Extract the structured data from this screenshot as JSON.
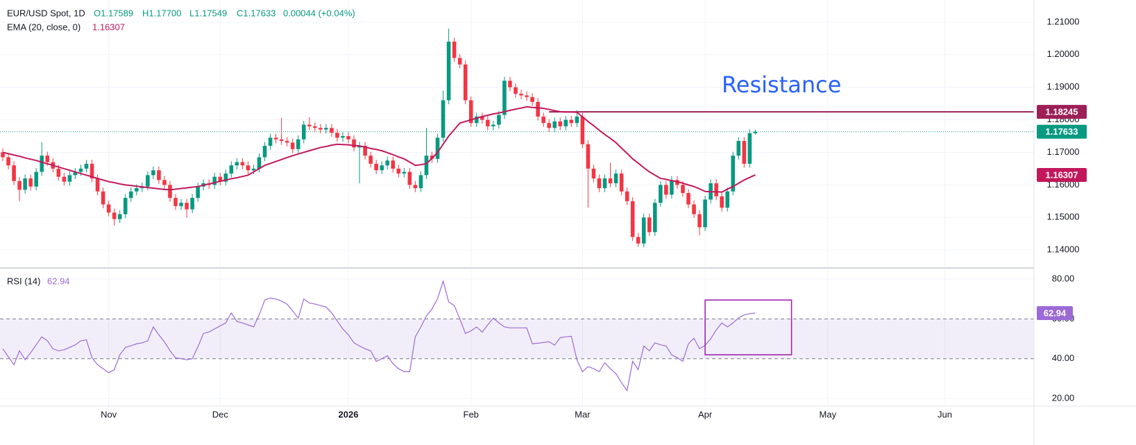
{
  "chart_data": [
    {
      "type": "candlestick",
      "title": "EUR/USD Spot, 1D",
      "legend_values": [
        "O1.17589",
        "H1.17700",
        "L1.17549",
        "C1.17633",
        "0.00044 (+0.04%)"
      ],
      "xlim": [
        -0.5,
        185
      ],
      "xticks": [
        {
          "value": 19,
          "label": "Nov"
        },
        {
          "value": 39,
          "label": "Dec"
        },
        {
          "value": 62,
          "label": "2026"
        },
        {
          "value": 84,
          "label": "Feb"
        },
        {
          "value": 104,
          "label": "Mar"
        },
        {
          "value": 126,
          "label": "Apr"
        },
        {
          "value": 148,
          "label": "May"
        },
        {
          "value": 169,
          "label": "Jun"
        }
      ],
      "ylim": [
        1.1347,
        1.2168
      ],
      "yticks": [
        {
          "value": 1.14,
          "label": "1.14000"
        },
        {
          "value": 1.15,
          "label": "1.15000"
        },
        {
          "value": 1.16,
          "label": "1.16000"
        },
        {
          "value": 1.17,
          "label": "1.17000"
        },
        {
          "value": 1.18,
          "label": "1.18000"
        },
        {
          "value": 1.19,
          "label": "1.19000"
        },
        {
          "value": 1.2,
          "label": "1.20000"
        },
        {
          "value": 1.21,
          "label": "1.21000"
        }
      ],
      "grid": true,
      "up_color": "#089981",
      "down_color": "#f23645",
      "open": [
        1.17,
        1.1685,
        1.166,
        1.1612,
        1.1585,
        1.162,
        1.1595,
        1.164,
        1.169,
        1.167,
        1.165,
        1.1625,
        1.161,
        1.163,
        1.164,
        1.165,
        1.1665,
        1.162,
        1.158,
        1.154,
        1.1515,
        1.1495,
        1.151,
        1.156,
        1.158,
        1.159,
        1.1595,
        1.163,
        1.1645,
        1.1615,
        1.16,
        1.156,
        1.1535,
        1.1545,
        1.1525,
        1.156,
        1.1595,
        1.1605,
        1.16,
        1.1625,
        1.161,
        1.1635,
        1.166,
        1.167,
        1.166,
        1.1645,
        1.165,
        1.1685,
        1.172,
        1.1745,
        1.174,
        1.1735,
        1.173,
        1.171,
        1.174,
        1.1785,
        1.178,
        1.1775,
        1.177,
        1.1775,
        1.176,
        1.1745,
        1.175,
        1.174,
        1.1715,
        1.172,
        1.169,
        1.1665,
        1.1645,
        1.166,
        1.1675,
        1.165,
        1.1635,
        1.164,
        1.16,
        1.159,
        1.163,
        1.169,
        1.168,
        1.1745,
        1.186,
        1.204,
        1.199,
        1.197,
        1.186,
        1.179,
        1.181,
        1.18,
        1.178,
        1.1785,
        1.1815,
        1.192,
        1.19,
        1.188,
        1.1875,
        1.187,
        1.1855,
        1.181,
        1.179,
        1.1775,
        1.1795,
        1.178,
        1.18,
        1.179,
        1.181,
        1.1725,
        1.165,
        1.162,
        1.159,
        1.162,
        1.1605,
        1.1635,
        1.158,
        1.155,
        1.144,
        1.142,
        1.15,
        1.1455,
        1.1545,
        1.16,
        1.157,
        1.1615,
        1.16,
        1.1575,
        1.154,
        1.151,
        1.147,
        1.1555,
        1.1605,
        1.1565,
        1.153,
        1.158,
        1.169,
        1.1735,
        1.1665,
        1.17589
      ],
      "high": [
        1.1712,
        1.1697,
        1.1672,
        1.1624,
        1.1632,
        1.1632,
        1.1652,
        1.1732,
        1.1702,
        1.1682,
        1.1662,
        1.1637,
        1.1642,
        1.1652,
        1.1662,
        1.1677,
        1.1677,
        1.1632,
        1.1592,
        1.1552,
        1.1527,
        1.1522,
        1.1572,
        1.1592,
        1.1602,
        1.1607,
        1.1642,
        1.1657,
        1.1657,
        1.1627,
        1.1612,
        1.1572,
        1.1557,
        1.1557,
        1.1572,
        1.1607,
        1.1617,
        1.1617,
        1.1637,
        1.1637,
        1.1647,
        1.1672,
        1.1682,
        1.1682,
        1.1672,
        1.1662,
        1.1697,
        1.1732,
        1.1757,
        1.1757,
        1.1806,
        1.1747,
        1.1742,
        1.1752,
        1.1797,
        1.1808,
        1.1792,
        1.1787,
        1.1787,
        1.1787,
        1.1772,
        1.1762,
        1.1762,
        1.1752,
        1.1732,
        1.1732,
        1.1702,
        1.1677,
        1.1672,
        1.1687,
        1.1687,
        1.1662,
        1.1652,
        1.1652,
        1.1612,
        1.1642,
        1.1775,
        1.1702,
        1.1757,
        1.189,
        1.208,
        1.2052,
        1.2002,
        1.1982,
        1.1872,
        1.1822,
        1.1822,
        1.1812,
        1.1797,
        1.1827,
        1.1932,
        1.1932,
        1.1912,
        1.1892,
        1.1887,
        1.1882,
        1.1867,
        1.1822,
        1.1802,
        1.1807,
        1.1807,
        1.1812,
        1.1812,
        1.183,
        1.1822,
        1.1737,
        1.1662,
        1.1632,
        1.1632,
        1.1668,
        1.1647,
        1.1647,
        1.1592,
        1.1562,
        1.1452,
        1.1512,
        1.1512,
        1.1557,
        1.1612,
        1.1612,
        1.1627,
        1.1627,
        1.1612,
        1.1587,
        1.1552,
        1.1522,
        1.1567,
        1.1617,
        1.1617,
        1.1577,
        1.1592,
        1.1702,
        1.1747,
        1.1747,
        1.1771,
        1.177
      ],
      "low": [
        1.1673,
        1.1648,
        1.16,
        1.155,
        1.1573,
        1.1583,
        1.1583,
        1.1628,
        1.1658,
        1.1638,
        1.1613,
        1.1598,
        1.1598,
        1.1618,
        1.1628,
        1.1638,
        1.1608,
        1.1568,
        1.1528,
        1.1503,
        1.1475,
        1.1483,
        1.1498,
        1.1548,
        1.1568,
        1.1578,
        1.1583,
        1.1618,
        1.1603,
        1.1588,
        1.1548,
        1.1523,
        1.1523,
        1.15,
        1.1513,
        1.1548,
        1.1583,
        1.1588,
        1.1588,
        1.1598,
        1.1598,
        1.1623,
        1.1648,
        1.1648,
        1.1633,
        1.1633,
        1.1638,
        1.1673,
        1.1708,
        1.1728,
        1.1723,
        1.1718,
        1.1698,
        1.1698,
        1.1728,
        1.1768,
        1.1763,
        1.1758,
        1.1758,
        1.1748,
        1.1733,
        1.1733,
        1.1728,
        1.1703,
        1.1605,
        1.1678,
        1.1653,
        1.1633,
        1.1633,
        1.1648,
        1.1638,
        1.1623,
        1.1623,
        1.1588,
        1.1578,
        1.1578,
        1.1618,
        1.1668,
        1.1668,
        1.1733,
        1.1848,
        1.1978,
        1.1958,
        1.1848,
        1.1778,
        1.1778,
        1.1788,
        1.1768,
        1.1768,
        1.1773,
        1.1803,
        1.1888,
        1.1868,
        1.1863,
        1.1858,
        1.1843,
        1.1798,
        1.1778,
        1.1763,
        1.1763,
        1.1768,
        1.1768,
        1.1778,
        1.1778,
        1.1713,
        1.153,
        1.1608,
        1.1578,
        1.1578,
        1.1593,
        1.1593,
        1.1568,
        1.1538,
        1.1428,
        1.141,
        1.1408,
        1.1443,
        1.1443,
        1.1533,
        1.1558,
        1.1558,
        1.1588,
        1.1563,
        1.1528,
        1.1498,
        1.1445,
        1.1458,
        1.1543,
        1.1553,
        1.1518,
        1.1518,
        1.1568,
        1.1678,
        1.1653,
        1.1653,
        1.17549
      ],
      "close": [
        1.1685,
        1.166,
        1.1612,
        1.1585,
        1.162,
        1.1595,
        1.164,
        1.169,
        1.167,
        1.165,
        1.1625,
        1.161,
        1.163,
        1.164,
        1.165,
        1.1665,
        1.162,
        1.158,
        1.154,
        1.1515,
        1.1495,
        1.151,
        1.156,
        1.158,
        1.159,
        1.1595,
        1.163,
        1.1645,
        1.1615,
        1.16,
        1.156,
        1.1535,
        1.1545,
        1.1525,
        1.156,
        1.1595,
        1.1605,
        1.16,
        1.1625,
        1.161,
        1.1635,
        1.166,
        1.167,
        1.166,
        1.1645,
        1.165,
        1.1685,
        1.172,
        1.1745,
        1.174,
        1.1735,
        1.173,
        1.171,
        1.174,
        1.1785,
        1.178,
        1.1775,
        1.177,
        1.1775,
        1.176,
        1.1745,
        1.175,
        1.174,
        1.1715,
        1.172,
        1.169,
        1.1665,
        1.1645,
        1.166,
        1.1675,
        1.165,
        1.1635,
        1.164,
        1.16,
        1.159,
        1.163,
        1.169,
        1.168,
        1.1745,
        1.186,
        1.204,
        1.199,
        1.197,
        1.186,
        1.179,
        1.181,
        1.18,
        1.178,
        1.1785,
        1.1815,
        1.192,
        1.19,
        1.188,
        1.1875,
        1.187,
        1.1855,
        1.181,
        1.179,
        1.1775,
        1.1795,
        1.178,
        1.18,
        1.179,
        1.181,
        1.1725,
        1.165,
        1.162,
        1.159,
        1.162,
        1.1605,
        1.1635,
        1.158,
        1.155,
        1.144,
        1.142,
        1.15,
        1.1455,
        1.1545,
        1.16,
        1.157,
        1.1615,
        1.16,
        1.1575,
        1.154,
        1.151,
        1.147,
        1.1555,
        1.1605,
        1.1565,
        1.153,
        1.158,
        1.169,
        1.1735,
        1.1665,
        1.1759,
        1.17633
      ],
      "series": [
        {
          "name": "EMA (20, close, 0)",
          "color": "#c2185b",
          "values": [
            1.17,
            1.1696,
            1.1692,
            1.1688,
            1.1683,
            1.1679,
            1.1675,
            1.167,
            1.1665,
            1.166,
            1.1655,
            1.165,
            1.1645,
            1.164,
            1.1635,
            1.163,
            1.1625,
            1.162,
            1.1615,
            1.161,
            1.1607,
            1.1603,
            1.16,
            1.1598,
            1.1596,
            1.1594,
            1.1592,
            1.159,
            1.1588,
            1.1586,
            1.1585,
            1.1587,
            1.1589,
            1.1591,
            1.1593,
            1.1595,
            1.1599,
            1.1603,
            1.1607,
            1.1611,
            1.1615,
            1.1619,
            1.1622,
            1.1626,
            1.163,
            1.164,
            1.165,
            1.166,
            1.1666,
            1.1672,
            1.1678,
            1.1684,
            1.169,
            1.1695,
            1.17,
            1.1705,
            1.171,
            1.1715,
            1.1718,
            1.1722,
            1.1725,
            1.1724,
            1.1723,
            1.1721,
            1.172,
            1.1716,
            1.1712,
            1.1709,
            1.1705,
            1.1699,
            1.1693,
            1.1686,
            1.168,
            1.167,
            1.166,
            1.1662,
            1.1665,
            1.1682,
            1.17,
            1.1725,
            1.175,
            1.177,
            1.179,
            1.1795,
            1.18,
            1.1805,
            1.181,
            1.1814,
            1.1818,
            1.1821,
            1.1825,
            1.1829,
            1.1833,
            1.1836,
            1.184,
            1.1838,
            1.1837,
            1.1835,
            1.1832,
            1.1828,
            1.1825,
            1.1824,
            1.1824,
            1.1823,
            1.1809,
            1.1795,
            1.1782,
            1.1768,
            1.1755,
            1.1743,
            1.173,
            1.1713,
            1.1697,
            1.168,
            1.1667,
            1.1653,
            1.164,
            1.163,
            1.162,
            1.1617,
            1.1613,
            1.161,
            1.1605,
            1.16,
            1.1595,
            1.1588,
            1.158,
            1.1579,
            1.1579,
            1.1578,
            1.1587,
            1.1595,
            1.1605,
            1.1615,
            1.1623,
            1.16307
          ]
        }
      ],
      "price_line_color": "#089981",
      "annotations": [
        {
          "text": "Resistance",
          "value": 1.18245,
          "x_start": 98,
          "color": "#9c1f55",
          "text_color": "#2962ff"
        }
      ]
    },
    {
      "type": "line",
      "xlim": [
        -0.5,
        185
      ],
      "ylim": [
        16.2,
        84.9
      ],
      "yticks": [
        {
          "value": 20,
          "label": "20.00"
        },
        {
          "value": 40,
          "label": "40.00"
        },
        {
          "value": 60,
          "label": "60.00"
        },
        {
          "value": 80,
          "label": "80.00"
        }
      ],
      "band": [
        40,
        60
      ],
      "series": [
        {
          "name": "RSI (14)",
          "color": "#9c6ad6",
          "values": [
            45,
            41,
            37,
            44,
            39.5,
            43,
            47,
            51,
            49,
            45,
            44,
            44.5,
            45.7,
            47,
            49,
            49.5,
            40.5,
            37,
            35,
            33,
            34.5,
            42,
            45.7,
            46.5,
            47.5,
            48,
            49,
            56,
            52,
            48.5,
            44,
            40.5,
            40,
            39.5,
            40,
            46,
            52.7,
            53.5,
            55,
            56.5,
            58,
            63,
            58.7,
            58,
            57,
            56,
            62,
            69.5,
            70.5,
            70,
            69,
            67.4,
            64,
            60.4,
            70,
            68,
            67.5,
            66.7,
            66,
            63,
            59,
            55,
            52,
            48,
            46.4,
            45,
            44,
            38.7,
            40,
            41.5,
            37.5,
            35,
            33.5,
            33.5,
            51,
            56,
            61.5,
            65,
            70.2,
            79,
            68.5,
            66.7,
            60,
            52.7,
            54,
            56,
            53.4,
            57,
            60.4,
            58,
            56,
            55.5,
            55.5,
            55.5,
            55.5,
            47.5,
            47.8,
            48.2,
            48.5,
            46.8,
            50.6,
            51,
            51.3,
            39.5,
            33.5,
            36,
            35,
            33.5,
            38,
            35,
            32.5,
            28,
            24,
            38.7,
            34.5,
            46.4,
            44,
            48,
            47,
            46.4,
            42,
            40.5,
            38.7,
            47.5,
            50.3,
            45,
            46.8,
            50,
            54.5,
            58,
            56,
            58,
            60.5,
            62,
            62.7,
            62.94
          ]
        }
      ],
      "box": {
        "xlim": [
          126,
          141.5
        ],
        "ylim": [
          42,
          69.5
        ],
        "color": "#9c27b0"
      }
    }
  ]
}
